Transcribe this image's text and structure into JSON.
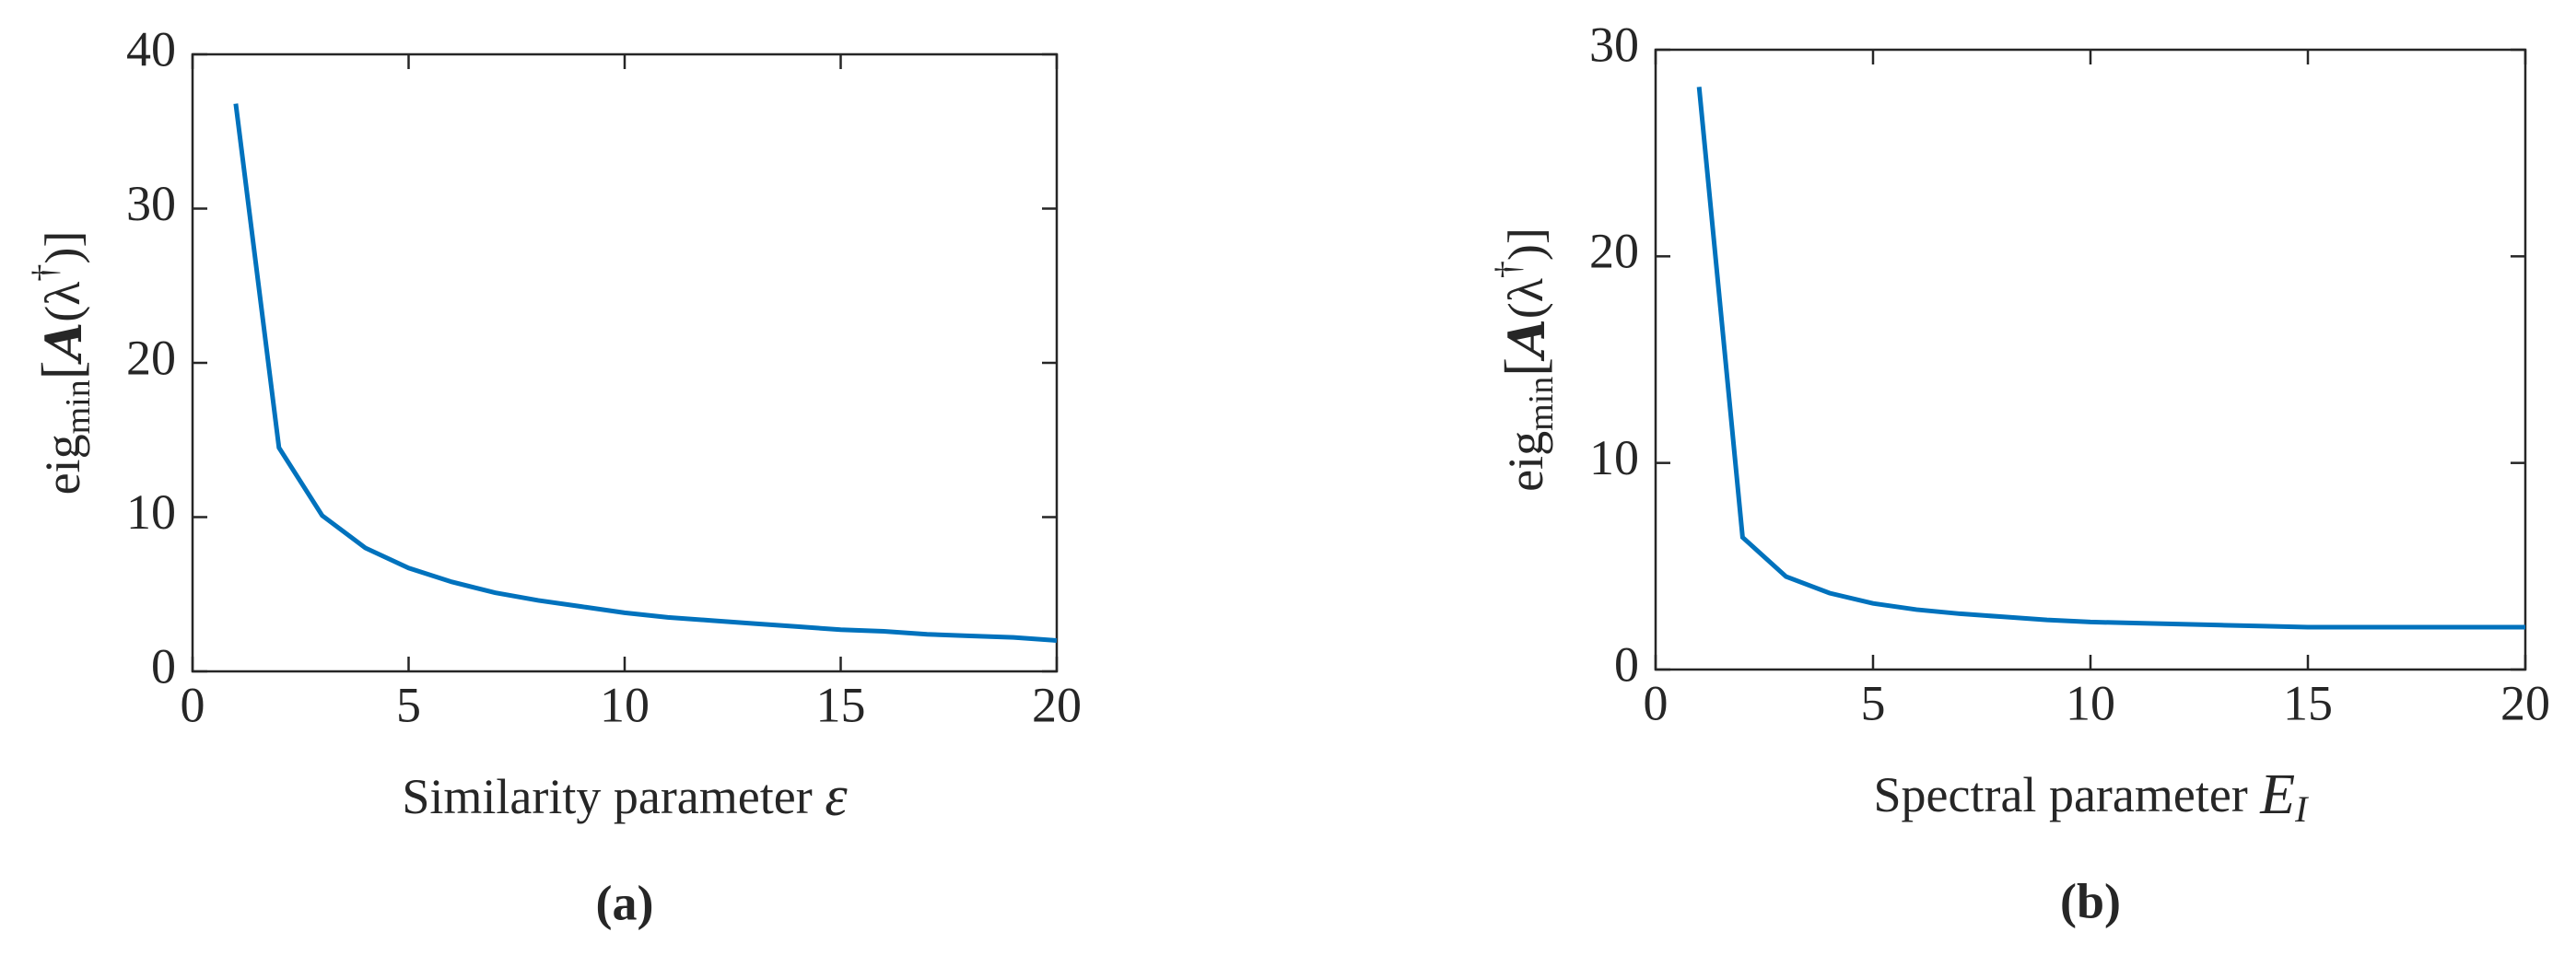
{
  "chart_data": [
    {
      "type": "line",
      "panel_label": "(a)",
      "xlabel": [
        "Similarity parameter ",
        "ε"
      ],
      "ylabel": [
        "eig",
        "min",
        "[",
        "A",
        "(λ",
        "†",
        ")]"
      ],
      "x": [
        1,
        2,
        3,
        4,
        5,
        6,
        7,
        8,
        9,
        10,
        11,
        12,
        13,
        14,
        15,
        16,
        17,
        18,
        19,
        20
      ],
      "values": [
        36.8,
        14.5,
        10.1,
        8.0,
        6.7,
        5.8,
        5.1,
        4.6,
        4.2,
        3.8,
        3.5,
        3.3,
        3.1,
        2.9,
        2.7,
        2.6,
        2.4,
        2.3,
        2.2,
        2.0
      ],
      "color": "#0072bd",
      "xlim": [
        0,
        20
      ],
      "xticks": [
        0,
        5,
        10,
        15,
        20
      ],
      "ylim": [
        0,
        40
      ],
      "yticks": [
        0,
        10,
        20,
        30,
        40
      ]
    },
    {
      "type": "line",
      "panel_label": "(b)",
      "xlabel": [
        "Spectral parameter ",
        "E",
        "I"
      ],
      "ylabel": [
        "eig",
        "min",
        "[",
        "A",
        "(λ",
        "†",
        ")]"
      ],
      "x": [
        1,
        2,
        3,
        4,
        5,
        6,
        7,
        8,
        9,
        10,
        11,
        12,
        13,
        14,
        15,
        16,
        17,
        18,
        19,
        20
      ],
      "values": [
        28.2,
        6.4,
        4.5,
        3.7,
        3.2,
        2.9,
        2.7,
        2.55,
        2.4,
        2.3,
        2.25,
        2.2,
        2.15,
        2.1,
        2.05,
        2.05,
        2.05,
        2.05,
        2.05,
        2.05
      ],
      "color": "#0072bd",
      "xlim": [
        0,
        20
      ],
      "xticks": [
        0,
        5,
        10,
        15,
        20
      ],
      "ylim": [
        0,
        30
      ],
      "yticks": [
        0,
        10,
        20,
        30
      ]
    }
  ]
}
